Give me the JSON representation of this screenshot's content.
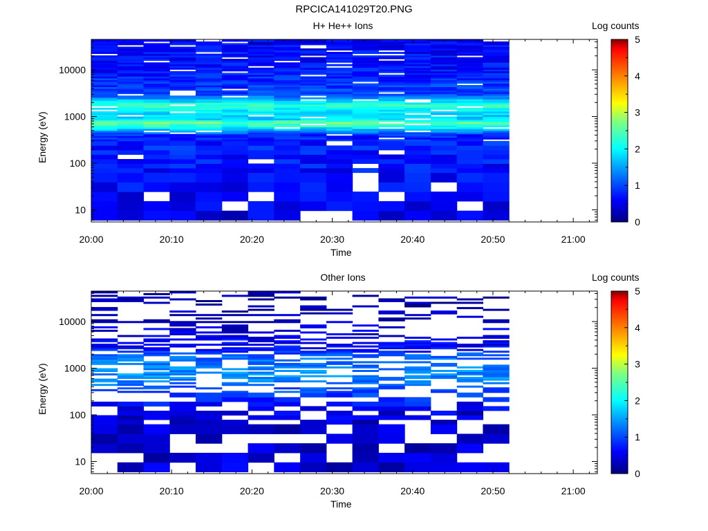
{
  "figure": {
    "title": "RPCICA141029T20.PNG"
  },
  "chart_data": [
    {
      "type": "heatmap",
      "title": "H+ He++ Ions",
      "xlabel": "Time",
      "ylabel": "Energy (eV)",
      "y_scale": "log",
      "ylim": [
        5.5,
        45000
      ],
      "x_ticks": [
        "20:00",
        "20:10",
        "20:20",
        "20:30",
        "20:40",
        "20:50",
        "21:00"
      ],
      "x_range_minutes": [
        0,
        63
      ],
      "data_coverage_minutes": [
        0,
        52
      ],
      "y_ticks": [
        "10",
        "100",
        "1000",
        "10000"
      ],
      "colorbar": {
        "label": "Log counts",
        "range": [
          0,
          5
        ],
        "ticks": [
          "0",
          "1",
          "2",
          "3",
          "4",
          "5"
        ]
      },
      "energy_band_profile": [
        {
          "energy": 10,
          "log_counts": 0.5
        },
        {
          "energy": 100,
          "log_counts": 0.7
        },
        {
          "energy": 400,
          "log_counts": 0.8
        },
        {
          "energy": 650,
          "log_counts": 2.3
        },
        {
          "energy": 750,
          "log_counts": 2.6
        },
        {
          "energy": 900,
          "log_counts": 1.7
        },
        {
          "energy": 1500,
          "log_counts": 2.0
        },
        {
          "energy": 1700,
          "log_counts": 2.4
        },
        {
          "energy": 3000,
          "log_counts": 1.0
        },
        {
          "energy": 10000,
          "log_counts": 0.7
        },
        {
          "energy": 40000,
          "log_counts": 0.6
        }
      ]
    },
    {
      "type": "heatmap",
      "title": "Other Ions",
      "xlabel": "Time",
      "ylabel": "Energy (eV)",
      "y_scale": "log",
      "ylim": [
        5.5,
        45000
      ],
      "x_ticks": [
        "20:00",
        "20:10",
        "20:20",
        "20:30",
        "20:40",
        "20:50",
        "21:00"
      ],
      "x_range_minutes": [
        0,
        63
      ],
      "data_coverage_minutes": [
        0,
        52
      ],
      "y_ticks": [
        "10",
        "100",
        "1000",
        "10000"
      ],
      "colorbar": {
        "label": "Log counts",
        "range": [
          0,
          5
        ],
        "ticks": [
          "0",
          "1",
          "2",
          "3",
          "4",
          "5"
        ]
      },
      "energy_band_profile": [
        {
          "energy": 10,
          "log_counts": 0.4
        },
        {
          "energy": 100,
          "log_counts": 0.4
        },
        {
          "energy": 700,
          "log_counts": 1.4
        },
        {
          "energy": 1600,
          "log_counts": 1.2
        },
        {
          "energy": 3000,
          "log_counts": 0.6
        },
        {
          "energy": 20000,
          "log_counts": 0.2
        }
      ]
    }
  ]
}
